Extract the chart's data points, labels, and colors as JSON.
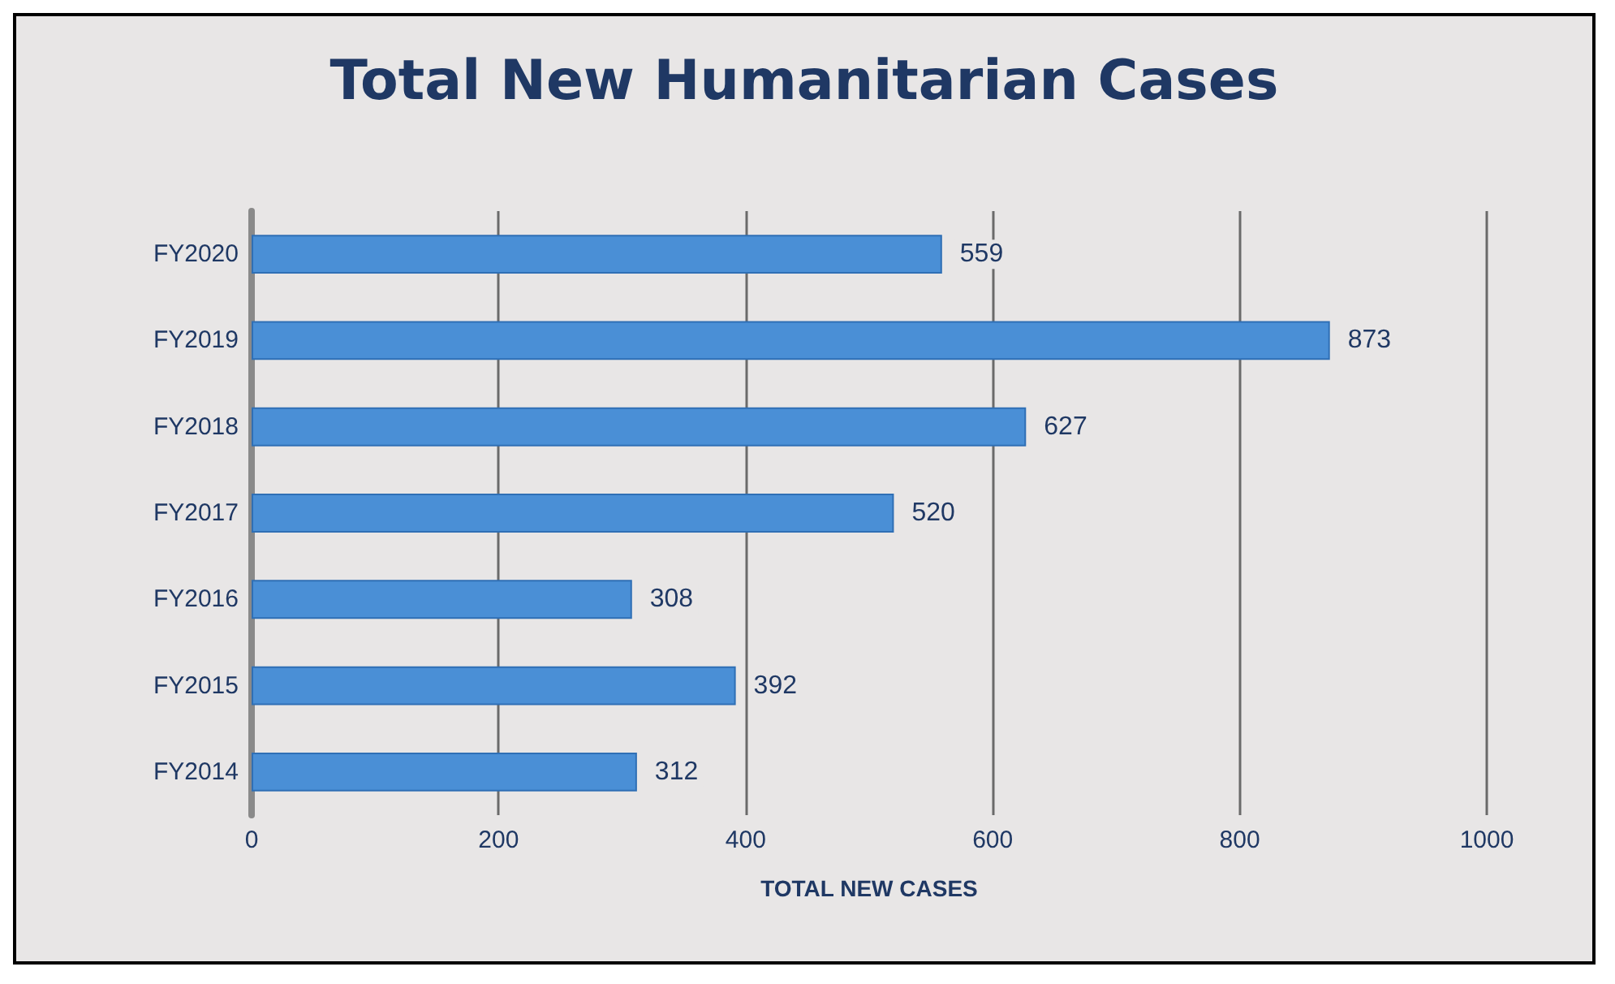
{
  "chart_data": {
    "type": "bar",
    "title": "Total New Humanitarian Cases",
    "xlabel": "TOTAL NEW CASES",
    "orientation": "horizontal",
    "categories": [
      "FY2020",
      "FY2019",
      "FY2018",
      "FY2017",
      "FY2016",
      "FY2015",
      "FY2014"
    ],
    "values": [
      559,
      873,
      627,
      520,
      308,
      392,
      312
    ],
    "color": "#4a8fd6",
    "xlim": [
      0,
      1000
    ],
    "xticks": [
      0,
      200,
      400,
      600,
      800,
      1000
    ],
    "grid": "x",
    "data_labels": true
  }
}
